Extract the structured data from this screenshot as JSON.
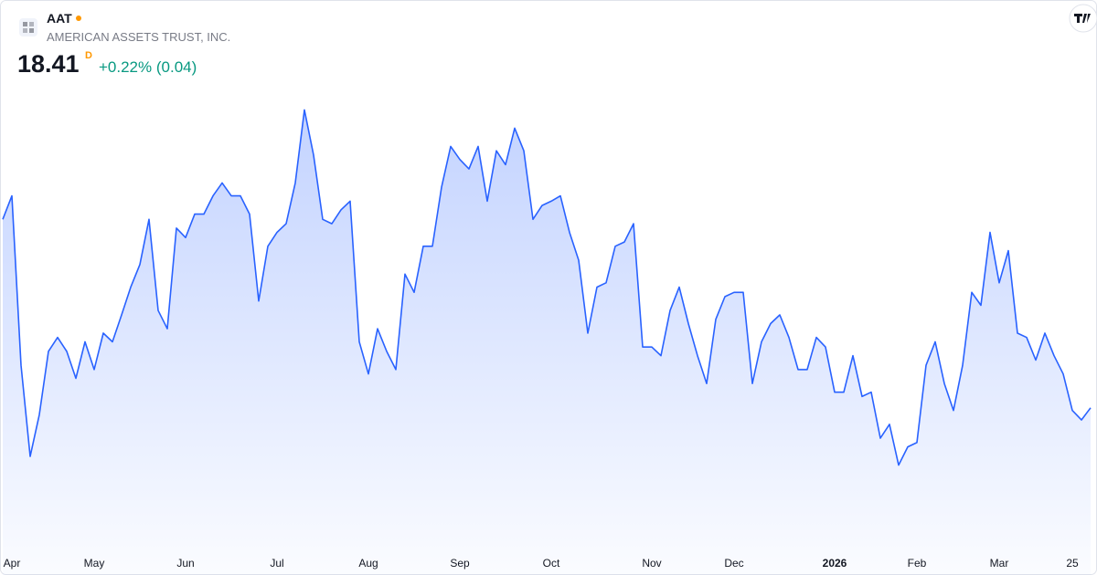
{
  "header": {
    "symbol": "AAT",
    "company": "AMERICAN ASSETS TRUST, INC.",
    "price": "18.41",
    "interval": "D",
    "change": "+0.22% (0.04)"
  },
  "chart_data": {
    "type": "area",
    "color": "#2962ff",
    "values": [
      20.58,
      20.85,
      18.9,
      17.85,
      18.33,
      19.06,
      19.22,
      19.06,
      18.75,
      19.17,
      18.85,
      19.27,
      19.17,
      19.48,
      19.8,
      20.06,
      20.58,
      19.53,
      19.32,
      20.48,
      20.37,
      20.64,
      20.64,
      20.85,
      21.0,
      20.85,
      20.85,
      20.64,
      19.64,
      20.27,
      20.43,
      20.53,
      21.0,
      21.84,
      21.32,
      20.58,
      20.53,
      20.69,
      20.79,
      19.17,
      18.8,
      19.32,
      19.06,
      18.85,
      19.95,
      19.74,
      20.27,
      20.27,
      20.95,
      21.42,
      21.27,
      21.16,
      21.42,
      20.79,
      21.37,
      21.21,
      21.63,
      21.37,
      20.58,
      20.74,
      20.79,
      20.85,
      20.43,
      20.11,
      19.27,
      19.8,
      19.85,
      20.27,
      20.32,
      20.53,
      19.11,
      19.11,
      19.01,
      19.53,
      19.8,
      19.38,
      19.01,
      18.69,
      19.43,
      19.69,
      19.74,
      19.74,
      18.69,
      19.17,
      19.38,
      19.48,
      19.22,
      18.85,
      18.85,
      19.22,
      19.11,
      18.59,
      18.59,
      19.01,
      18.54,
      18.59,
      18.06,
      18.22,
      17.75,
      17.96,
      18.01,
      18.9,
      19.17,
      18.69,
      18.38,
      18.9,
      19.74,
      19.59,
      20.43,
      19.85,
      20.22,
      19.27,
      19.22,
      18.96,
      19.27,
      19.01,
      18.8,
      18.38,
      18.27,
      18.41
    ],
    "xlim": [
      0,
      119
    ],
    "xticks": [
      {
        "value": 1,
        "label": "Apr"
      },
      {
        "value": 10,
        "label": "May"
      },
      {
        "value": 20,
        "label": "Jun"
      },
      {
        "value": 30,
        "label": "Jul"
      },
      {
        "value": 40,
        "label": "Aug"
      },
      {
        "value": 50,
        "label": "Sep"
      },
      {
        "value": 60,
        "label": "Oct"
      },
      {
        "value": 71,
        "label": "Nov"
      },
      {
        "value": 80,
        "label": "Dec"
      },
      {
        "value": 91,
        "label": "2026",
        "bold": true
      },
      {
        "value": 100,
        "label": "Feb"
      },
      {
        "value": 109,
        "label": "Mar"
      },
      {
        "value": 117,
        "label": "25"
      }
    ],
    "ylim": [
      16.8,
      22.16
    ]
  }
}
